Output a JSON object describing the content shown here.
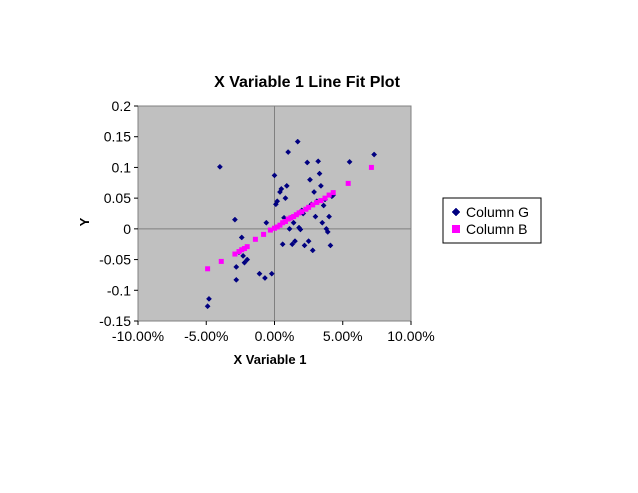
{
  "chart_data": {
    "type": "scatter",
    "title": "X Variable 1 Line Fit  Plot",
    "xlabel": "X Variable 1",
    "ylabel": "Y",
    "xlim": [
      -0.1,
      0.1
    ],
    "ylim": [
      -0.15,
      0.2
    ],
    "x_ticks": [
      "-10.00%",
      "-5.00%",
      "0.00%",
      "5.00%",
      "10.00%"
    ],
    "y_ticks": [
      "0.2",
      "0.15",
      "0.1",
      "0.05",
      "0",
      "-0.05",
      "-0.1",
      "-0.15"
    ],
    "grid": false,
    "plot_background": "#c0c0c0",
    "legend_position": "right",
    "series": [
      {
        "name": "Column G",
        "marker": "diamond",
        "color": "#000080",
        "points": [
          [
            -0.049,
            -0.126
          ],
          [
            -0.048,
            -0.114
          ],
          [
            -0.04,
            0.101
          ],
          [
            -0.029,
            0.015
          ],
          [
            -0.028,
            -0.083
          ],
          [
            -0.028,
            -0.062
          ],
          [
            -0.026,
            -0.038
          ],
          [
            -0.024,
            -0.014
          ],
          [
            -0.023,
            -0.044
          ],
          [
            -0.022,
            -0.055
          ],
          [
            -0.02,
            -0.05
          ],
          [
            -0.011,
            -0.073
          ],
          [
            -0.007,
            -0.08
          ],
          [
            -0.006,
            0.01
          ],
          [
            -0.002,
            -0.073
          ],
          [
            0.0,
            0.087
          ],
          [
            0.001,
            0.04
          ],
          [
            0.002,
            0.045
          ],
          [
            0.004,
            0.06
          ],
          [
            0.005,
            0.065
          ],
          [
            0.006,
            -0.025
          ],
          [
            0.007,
            0.018
          ],
          [
            0.008,
            0.05
          ],
          [
            0.009,
            0.07
          ],
          [
            0.01,
            0.125
          ],
          [
            0.011,
            0.0
          ],
          [
            0.012,
            0.018
          ],
          [
            0.013,
            -0.025
          ],
          [
            0.014,
            0.01
          ],
          [
            0.015,
            -0.02
          ],
          [
            0.017,
            0.142
          ],
          [
            0.018,
            0.002
          ],
          [
            0.019,
            -0.001
          ],
          [
            0.02,
            0.03
          ],
          [
            0.021,
            0.025
          ],
          [
            0.022,
            -0.027
          ],
          [
            0.024,
            0.108
          ],
          [
            0.025,
            -0.02
          ],
          [
            0.026,
            0.08
          ],
          [
            0.027,
            0.04
          ],
          [
            0.028,
            -0.035
          ],
          [
            0.029,
            0.06
          ],
          [
            0.03,
            0.02
          ],
          [
            0.031,
            0.045
          ],
          [
            0.032,
            0.11
          ],
          [
            0.033,
            0.09
          ],
          [
            0.034,
            0.07
          ],
          [
            0.035,
            0.01
          ],
          [
            0.036,
            0.038
          ],
          [
            0.037,
            0.048
          ],
          [
            0.038,
            0.0
          ],
          [
            0.039,
            -0.005
          ],
          [
            0.04,
            0.02
          ],
          [
            0.041,
            -0.027
          ],
          [
            0.042,
            0.053
          ],
          [
            0.043,
            0.055
          ],
          [
            0.055,
            0.109
          ],
          [
            0.073,
            0.121
          ]
        ]
      },
      {
        "name": "Column B",
        "marker": "square",
        "color": "#ff00ff",
        "points": [
          [
            -0.049,
            -0.065
          ],
          [
            -0.039,
            -0.053
          ],
          [
            -0.029,
            -0.041
          ],
          [
            -0.026,
            -0.037
          ],
          [
            -0.024,
            -0.034
          ],
          [
            -0.022,
            -0.032
          ],
          [
            -0.02,
            -0.029
          ],
          [
            -0.014,
            -0.017
          ],
          [
            -0.008,
            -0.009
          ],
          [
            -0.003,
            -0.002
          ],
          [
            0.0,
            0.001
          ],
          [
            0.002,
            0.003
          ],
          [
            0.004,
            0.006
          ],
          [
            0.006,
            0.01
          ],
          [
            0.008,
            0.012
          ],
          [
            0.01,
            0.016
          ],
          [
            0.012,
            0.018
          ],
          [
            0.014,
            0.02
          ],
          [
            0.016,
            0.023
          ],
          [
            0.018,
            0.026
          ],
          [
            0.02,
            0.028
          ],
          [
            0.023,
            0.032
          ],
          [
            0.025,
            0.035
          ],
          [
            0.028,
            0.039
          ],
          [
            0.031,
            0.043
          ],
          [
            0.034,
            0.046
          ],
          [
            0.037,
            0.05
          ],
          [
            0.04,
            0.055
          ],
          [
            0.043,
            0.059
          ],
          [
            0.054,
            0.074
          ],
          [
            0.071,
            0.1
          ]
        ]
      }
    ]
  }
}
